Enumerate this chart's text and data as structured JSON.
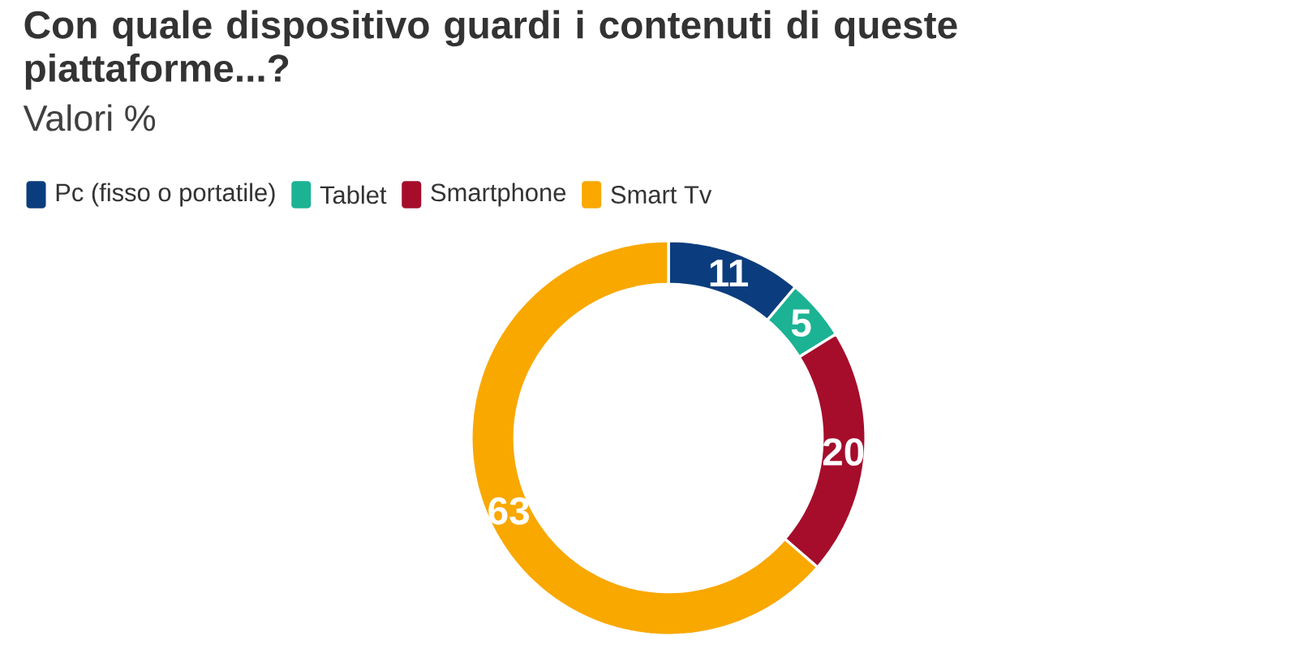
{
  "chart_data": {
    "type": "donut",
    "title": "Con quale dispositivo guardi i contenuti di queste piattaforme...?",
    "subtitle": "Valori %",
    "categories": [
      "Pc (fisso o portatile)",
      "Tablet",
      "Smartphone",
      "Smart Tv"
    ],
    "values": [
      11,
      5,
      20,
      63
    ],
    "colors": [
      "#0b3d7e",
      "#1bb394",
      "#a50d2b",
      "#f9a800"
    ],
    "data_labels": true,
    "legend": "top"
  }
}
